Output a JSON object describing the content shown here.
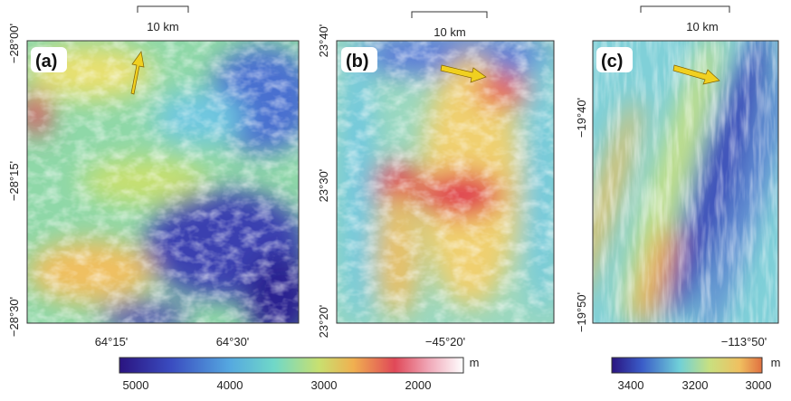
{
  "panels": [
    {
      "label": "(a)",
      "scale": "10 km",
      "y_labels": [
        "−28°00'",
        "−28°15'",
        "−28°30'"
      ],
      "x_labels": [
        "64°15'",
        "64°30'"
      ]
    },
    {
      "label": "(b)",
      "scale": "10 km",
      "y_labels": [
        "23°40'",
        "23°30'",
        "23°20'"
      ],
      "x_labels": [
        "−45°20'"
      ]
    },
    {
      "label": "(c)",
      "scale": "10 km",
      "y_labels": [
        "−19°40'",
        "−19°50'"
      ],
      "x_labels": [
        "−113°50'"
      ]
    }
  ],
  "colorbars": [
    {
      "ticks": [
        "5000",
        "4000",
        "3000",
        "2000"
      ],
      "unit": "m"
    },
    {
      "ticks": [
        "3400",
        "3200",
        "3000"
      ],
      "unit": "m"
    }
  ]
}
